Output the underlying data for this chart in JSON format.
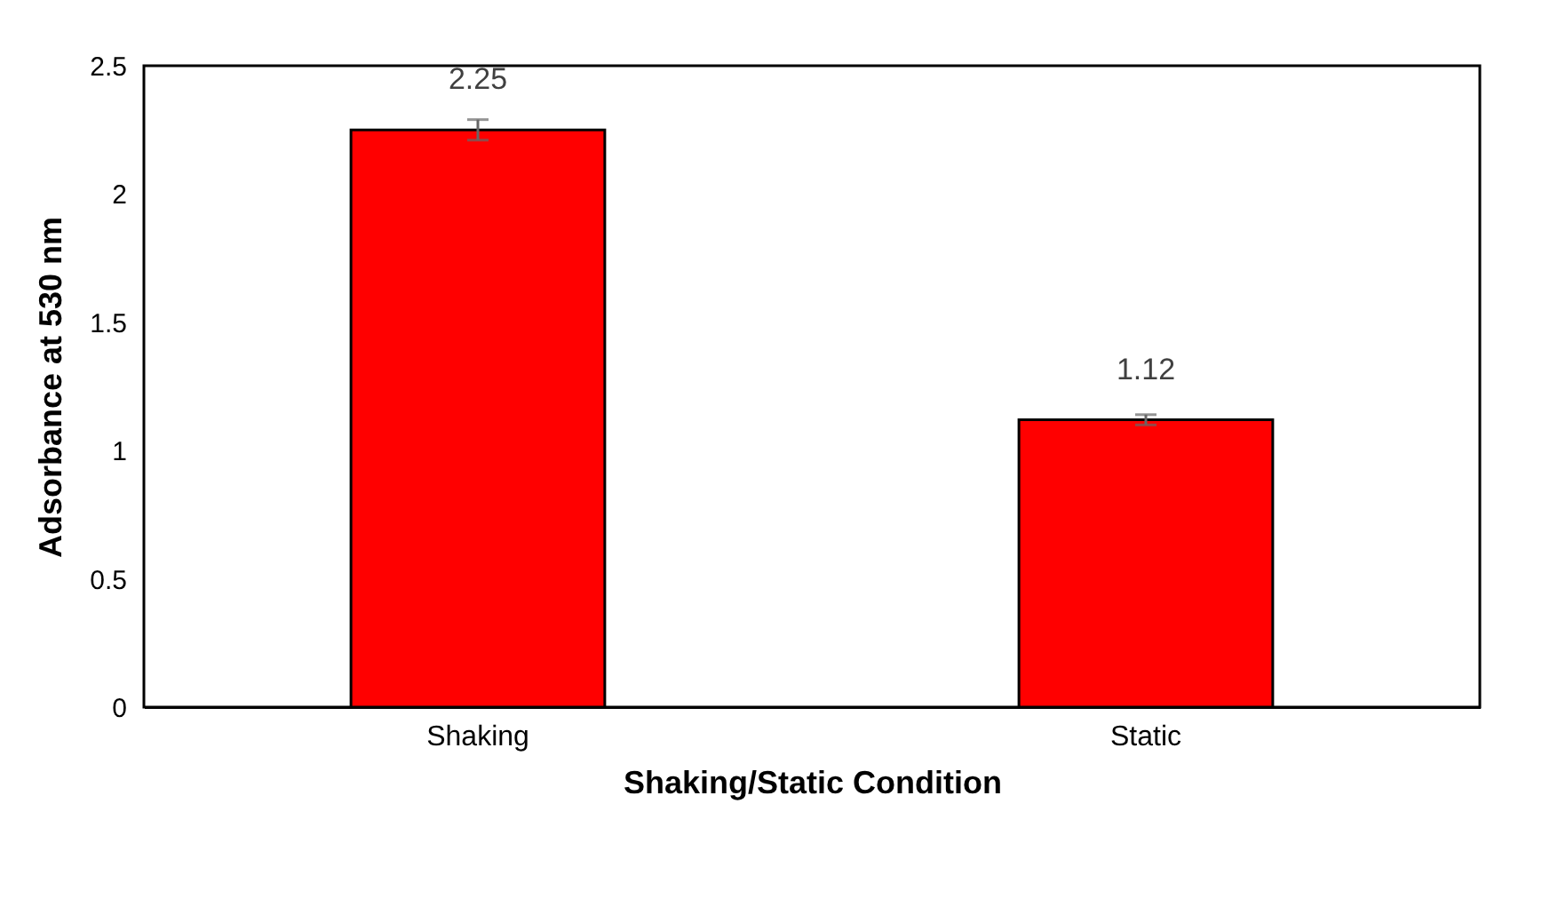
{
  "chart_data": {
    "type": "bar",
    "xlabel": "Shaking/Static Condition",
    "ylabel": "Adsorbance at 530 nm",
    "categories": [
      "Shaking",
      "Static"
    ],
    "values": [
      2.25,
      1.12
    ],
    "errors": [
      0.04,
      0.02
    ],
    "color": "#ff0000",
    "ylim": [
      0,
      2.5
    ],
    "yticks": [
      0,
      0.5,
      1,
      1.5,
      2,
      2.5
    ],
    "grid": false,
    "data_labels": true
  }
}
